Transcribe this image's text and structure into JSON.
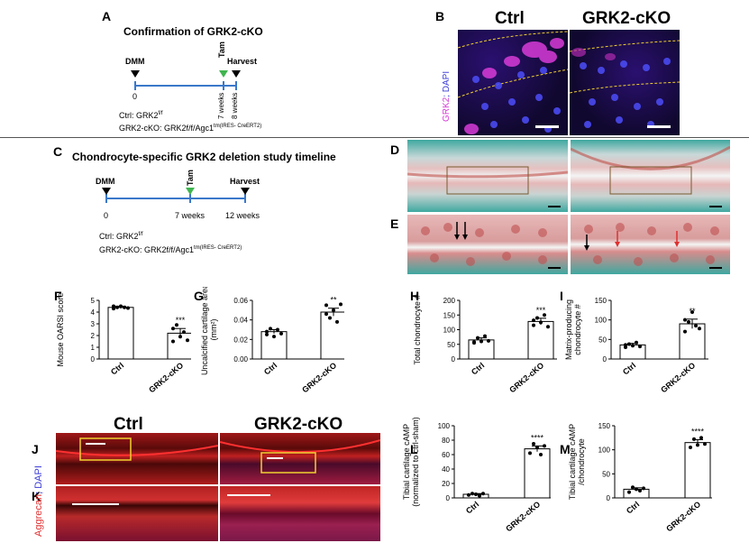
{
  "panels": {
    "A": {
      "label": "A",
      "title": "Confirmation of GRK2-cKO",
      "dmm": "DMM",
      "tam": "Tam",
      "harvest": "Harvest",
      "t0": "0",
      "t7": "7 weeks",
      "t8": "8 weeks",
      "ctrl_geno": "Ctrl: GRK2",
      "ctrl_sup": "f/f",
      "cko_geno": "GRK2-cKO: GRK2f/f/Agc1",
      "cko_sup": "tm(IRES- CreERT2)"
    },
    "B": {
      "label": "B",
      "ctrl": "Ctrl",
      "cko": "GRK2-cKO",
      "stain_a": "GRK2",
      "stain_b": "; DAPI"
    },
    "C": {
      "label": "C",
      "title": "Chondrocyte-specific GRK2 deletion study timeline",
      "dmm": "DMM",
      "tam": "Tam",
      "harvest": "Harvest",
      "t0": "0",
      "t7": "7 weeks",
      "t12": "12 weeks",
      "ctrl_geno": "Ctrl: GRK2",
      "ctrl_sup": "f/f",
      "cko_geno": "GRK2-cKO: GRK2f/f/Agc1",
      "cko_sup": "tm(IRES- CreERT2)"
    },
    "D": {
      "label": "D"
    },
    "E": {
      "label": "E"
    },
    "J": {
      "label": "J",
      "ctrl": "Ctrl",
      "cko": "GRK2-cKO"
    },
    "K": {
      "label": "K",
      "stain_a": "Aggrecan",
      "stain_b": "; DAPI"
    }
  },
  "chart_data": [
    {
      "id": "F",
      "type": "bar",
      "categories": [
        "Ctrl",
        "GRK2-cKO"
      ],
      "values": [
        4.4,
        2.2
      ],
      "sem": [
        0.1,
        0.4
      ],
      "ylabel": "Mouse OARSI score",
      "ylim": [
        0,
        5
      ],
      "ticks": [
        0,
        1,
        2,
        3,
        4,
        5
      ],
      "sig": "***",
      "points": [
        [
          4.3,
          4.4,
          4.5,
          4.4,
          4.35,
          4.5
        ],
        [
          1.5,
          2.9,
          1.9,
          2.3,
          1.6,
          2.6
        ]
      ]
    },
    {
      "id": "G",
      "type": "bar",
      "categories": [
        "Ctrl",
        "GRK2-cKO"
      ],
      "values": [
        0.028,
        0.048
      ],
      "sem": [
        0.002,
        0.004
      ],
      "ylabel": "Uncalcified cartilage area (mm²)",
      "ylim": [
        0,
        0.06
      ],
      "ticks": [
        0,
        0.02,
        0.04,
        0.06
      ],
      "ticklabels": [
        "0.00",
        "0.02",
        "0.04",
        "0.06"
      ],
      "sig": "**",
      "points": [
        [
          0.025,
          0.031,
          0.023,
          0.03,
          0.026,
          0.028
        ],
        [
          0.055,
          0.042,
          0.05,
          0.038,
          0.056,
          0.046
        ]
      ]
    },
    {
      "id": "H",
      "type": "bar",
      "categories": [
        "Ctrl",
        "GRK2-cKO"
      ],
      "values": [
        65,
        128
      ],
      "sem": [
        7,
        11
      ],
      "ylabel": "Total chondrocyte #",
      "ylim": [
        0,
        200
      ],
      "ticks": [
        0,
        50,
        100,
        150,
        200
      ],
      "sig": "***",
      "points": [
        [
          55,
          72,
          60,
          78,
          62,
          58
        ],
        [
          115,
          140,
          125,
          150,
          110,
          132
        ]
      ]
    },
    {
      "id": "I",
      "type": "bar",
      "categories": [
        "Ctrl",
        "GRK2-cKO"
      ],
      "values": [
        36,
        90
      ],
      "sem": [
        4,
        12
      ],
      "ylabel": "Matrix-producing chondrocyte #",
      "ylim": [
        0,
        150
      ],
      "ticks": [
        0,
        50,
        100,
        150
      ],
      "sig": "**",
      "points": [
        [
          30,
          38,
          34,
          42,
          32,
          36
        ],
        [
          70,
          95,
          120,
          85,
          78,
          100
        ]
      ]
    },
    {
      "id": "L",
      "type": "bar",
      "categories": [
        "Ctrl",
        "GRK2-cKO"
      ],
      "values": [
        5,
        68
      ],
      "sem": [
        1,
        4
      ],
      "ylabel": "Tibial cartilage cAMP (normalized to ctrl-sham)",
      "ylim": [
        0,
        100
      ],
      "ticks": [
        0,
        20,
        40,
        60,
        80,
        100
      ],
      "sig": "****",
      "points": [
        [
          4,
          6,
          5,
          3,
          6
        ],
        [
          62,
          75,
          70,
          60,
          72
        ]
      ]
    },
    {
      "id": "M",
      "type": "bar",
      "categories": [
        "Ctrl",
        "GRK2-cKO"
      ],
      "values": [
        18,
        115
      ],
      "sem": [
        3,
        6
      ],
      "ylabel": "Tibial cartilage cAMP /chondrocyte",
      "ylim": [
        0,
        150
      ],
      "ticks": [
        0,
        50,
        100,
        150
      ],
      "sig": "****",
      "points": [
        [
          12,
          22,
          18,
          15,
          20
        ],
        [
          105,
          122,
          110,
          125,
          112
        ]
      ]
    }
  ],
  "colors": {
    "blue_line": "#3a78c9",
    "green_tam": "#3fb54f",
    "magenta": "#d83bd8",
    "navy": "#3a3ad8",
    "red": "#e03030",
    "yellow": "#f0d030"
  }
}
